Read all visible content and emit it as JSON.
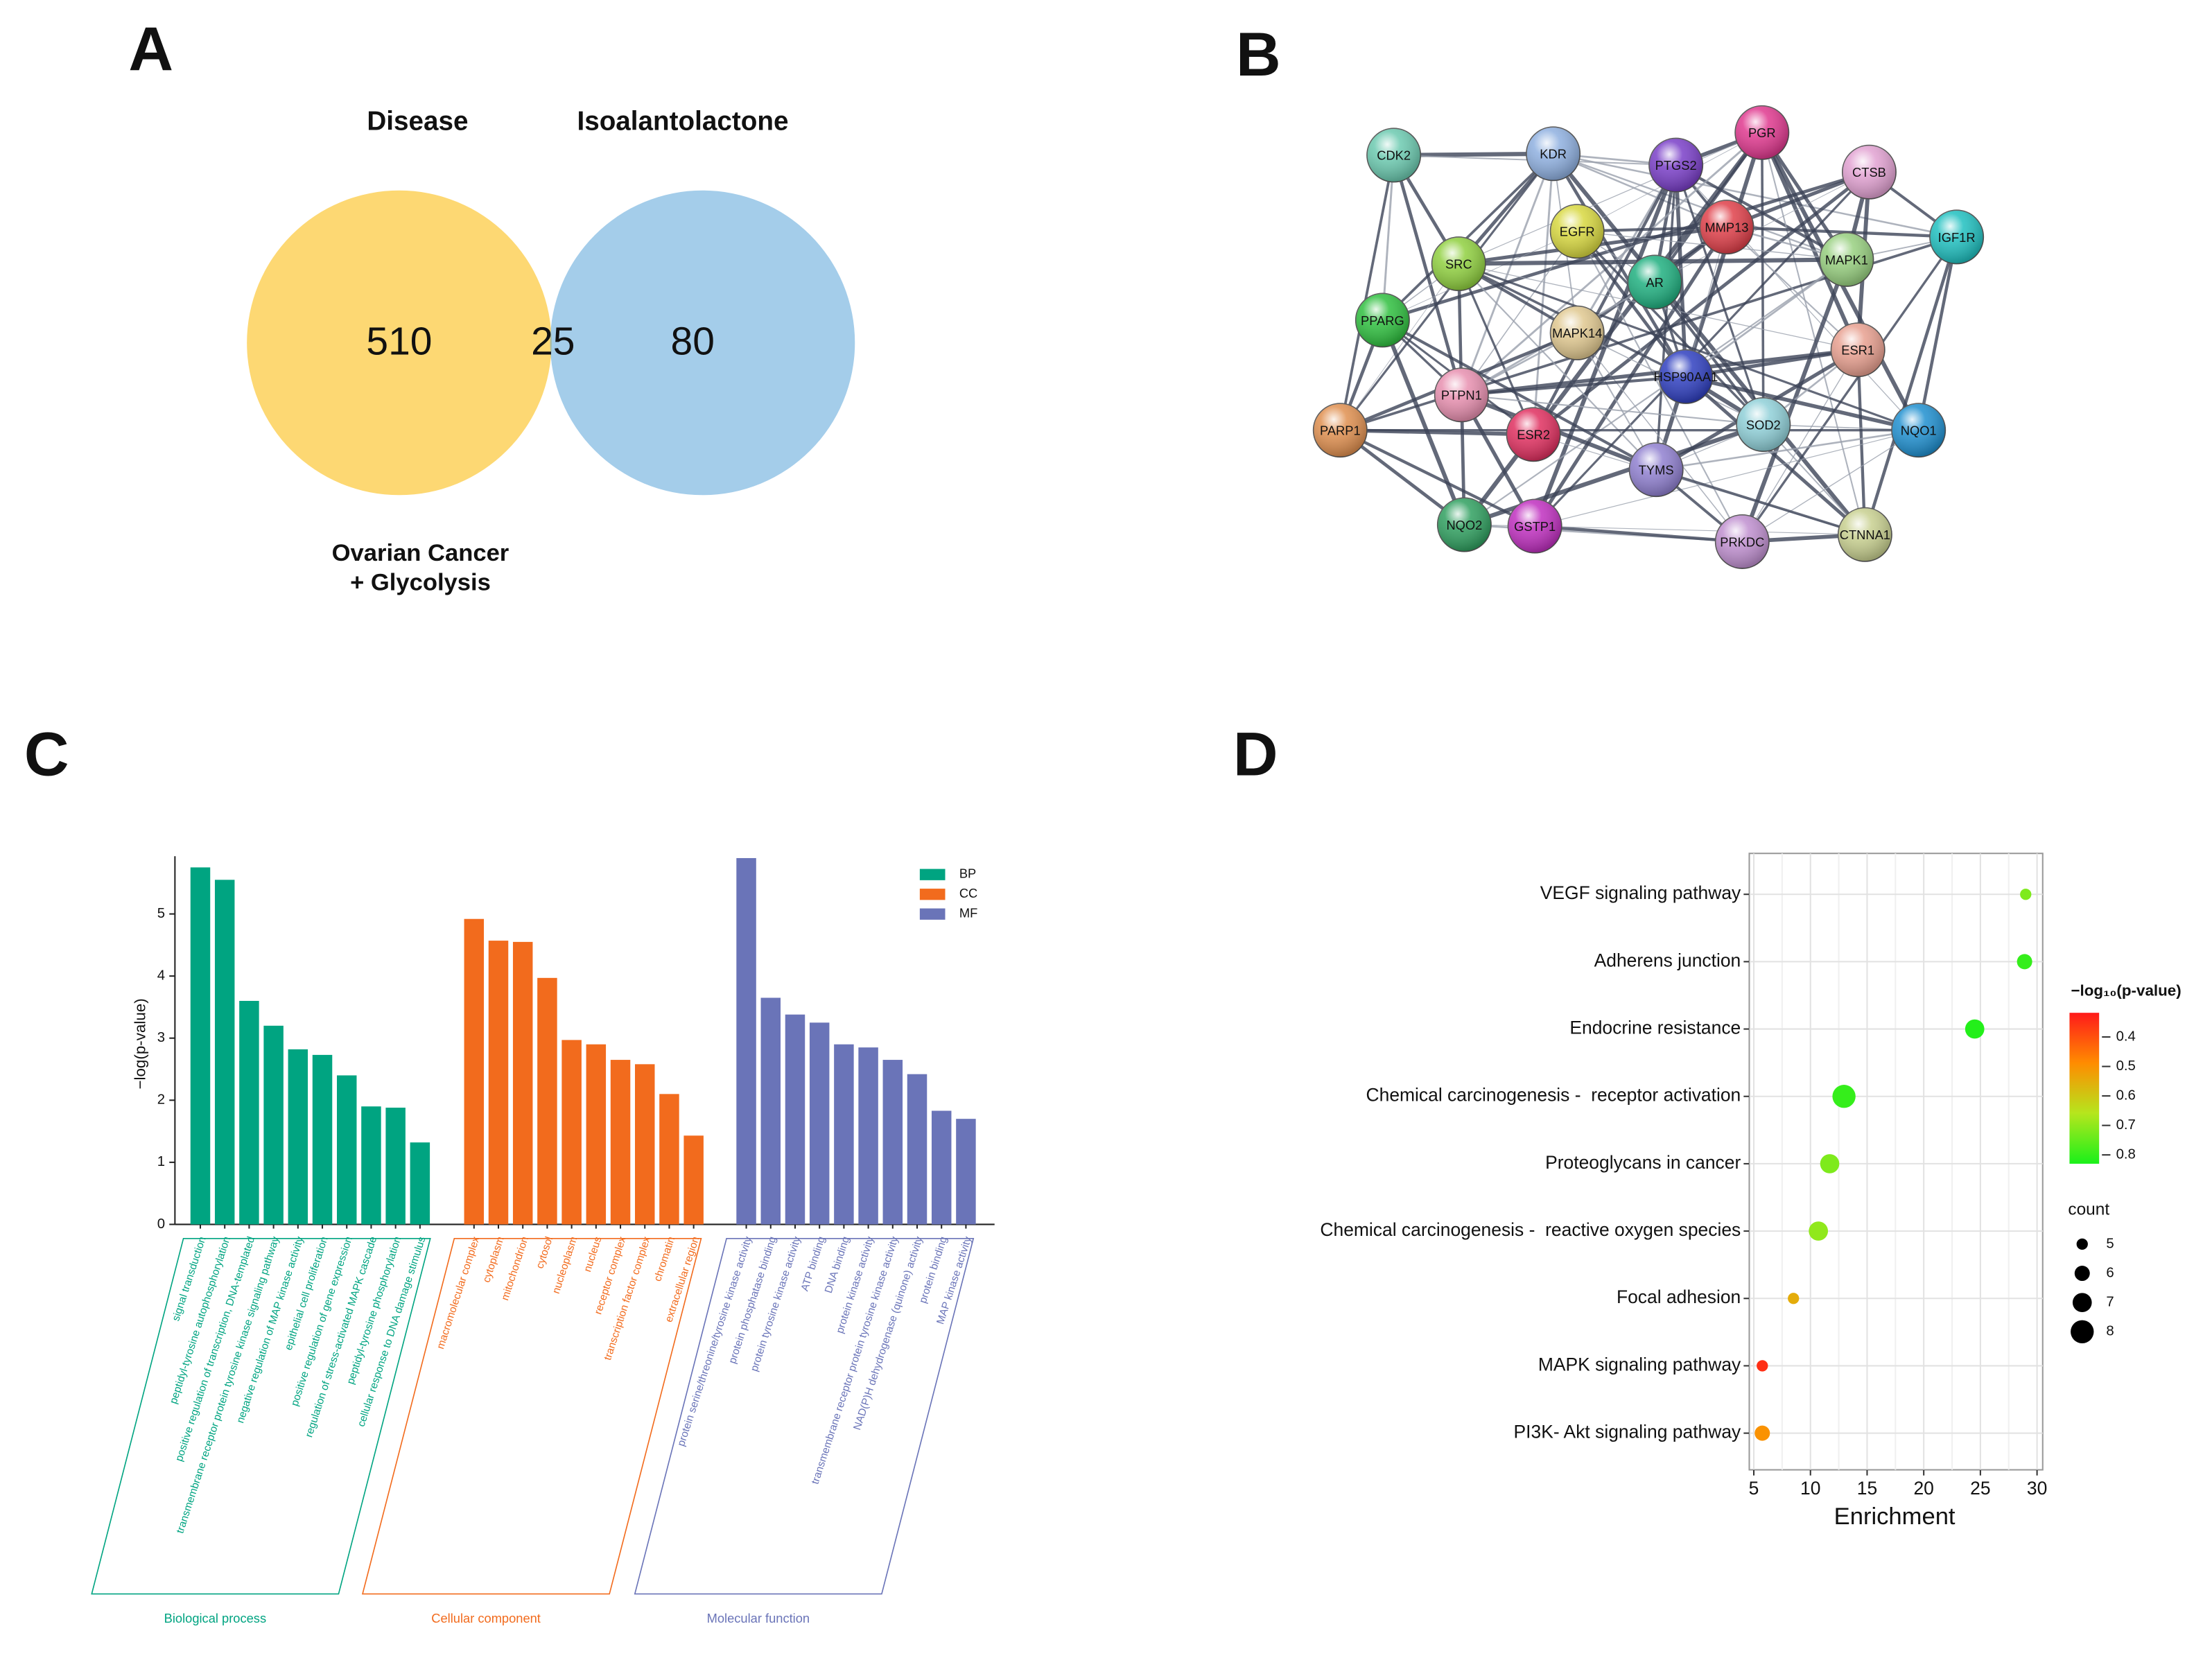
{
  "chart_data": [
    {
      "type": "venn",
      "label": "A",
      "sets": [
        {
          "name": "Disease",
          "color": "#fdd873"
        },
        {
          "name": "Isoalantolactone",
          "color": "#a4cdea"
        }
      ],
      "overlap_color": "#a9b99c",
      "note": [
        "Ovarian Cancer",
        "+ Glycolysis"
      ],
      "values": [
        510,
        25,
        80
      ]
    },
    {
      "type": "network",
      "label": "B",
      "nodes": [
        {
          "name": "CDK2",
          "color": "#6ccab0"
        },
        {
          "name": "KDR",
          "color": "#8fb0e0"
        },
        {
          "name": "PTGS2",
          "color": "#7a3fc8"
        },
        {
          "name": "PGR",
          "color": "#e0398f"
        },
        {
          "name": "CTSB",
          "color": "#e2a2d2"
        },
        {
          "name": "IGF1R",
          "color": "#20c0c0"
        },
        {
          "name": "MMP13",
          "color": "#e0404a"
        },
        {
          "name": "EGFR",
          "color": "#d8d840"
        },
        {
          "name": "SRC",
          "color": "#90d040"
        },
        {
          "name": "AR",
          "color": "#20b080"
        },
        {
          "name": "MAPK1",
          "color": "#98d080"
        },
        {
          "name": "PPARG",
          "color": "#30c040"
        },
        {
          "name": "MAPK14",
          "color": "#e0c890"
        },
        {
          "name": "ESR1",
          "color": "#e8a090"
        },
        {
          "name": "PTPN1",
          "color": "#e890b0"
        },
        {
          "name": "HSP90AA1",
          "color": "#3040c0"
        },
        {
          "name": "SOD2",
          "color": "#90d0d8"
        },
        {
          "name": "NQO1",
          "color": "#2090d0"
        },
        {
          "name": "PARP1",
          "color": "#e09050"
        },
        {
          "name": "ESR2",
          "color": "#e03060"
        },
        {
          "name": "TYMS",
          "color": "#9080d0"
        },
        {
          "name": "NQO2",
          "color": "#30a060"
        },
        {
          "name": "GSTP1",
          "color": "#c030c0"
        },
        {
          "name": "PRKDC",
          "color": "#c090d0"
        },
        {
          "name": "CTNNA1",
          "color": "#c8d090"
        }
      ]
    },
    {
      "type": "bar",
      "label": "C",
      "ylabel": "−log(p-value)",
      "ylim": [
        0,
        5.93
      ],
      "yticks": [
        0,
        1,
        2,
        3,
        4,
        5
      ],
      "series": [
        {
          "name": "BP",
          "group_label": "Biological process",
          "color": "#00a481",
          "categories": [
            "signal transduction",
            "peptidyl-tyrosine autophosphorylation",
            "positive regulation of transcription, DNA-templated",
            "transmembrane receptor protein tyrosine kinase signaling pathway",
            "negative regulation of MAP kinase activity",
            "epithelial cell proliferation",
            "positive regulation of gene expression",
            "regulation of stress-activated MAPK cascade",
            "peptidyl-tyrosine phosphorylation",
            "cellular response to DNA damage stimulus"
          ],
          "values": [
            5.75,
            5.55,
            3.6,
            3.2,
            2.82,
            2.73,
            2.4,
            1.9,
            1.88,
            1.32
          ]
        },
        {
          "name": "CC",
          "group_label": "Cellular component",
          "color": "#f26b1d",
          "categories": [
            "macromolecular complex",
            "cytoplasm",
            "mitochondrion",
            "cytosol",
            "nucleoplasm",
            "nucleus",
            "receptor complex",
            "transcription factor complex",
            "chromatin",
            "extracellular region"
          ],
          "values": [
            4.92,
            4.57,
            4.55,
            3.97,
            2.97,
            2.9,
            2.65,
            2.58,
            2.1,
            1.43
          ]
        },
        {
          "name": "MF",
          "group_label": "Molecular function",
          "color": "#6a74b8",
          "categories": [
            "protein serine/threonine/tyrosine kinase activity",
            "protein phosphatase binding",
            "protein tyrosine kinase activity",
            "ATP binding",
            "DNA binding",
            "protein kinase activity",
            "transmembrane receptor protein tyrosine kinase activity",
            "NAD(P)H dehydrogenase (quinone) activity",
            "protein binding",
            "MAP kinase activity"
          ],
          "values": [
            5.9,
            3.65,
            3.38,
            3.25,
            2.9,
            2.85,
            2.65,
            2.42,
            1.83,
            1.7
          ]
        }
      ]
    },
    {
      "type": "bubble",
      "label": "D",
      "xlabel": "Enrichment",
      "xlim": [
        4.6,
        30.5
      ],
      "xticks": [
        5,
        10,
        15,
        20,
        25,
        30
      ],
      "grid": true,
      "categories": [
        "VEGF signaling pathway",
        "Adherens junction",
        "Endocrine resistance",
        "Chemical carcinogenesis -  receptor activation",
        "Proteoglycans in cancer",
        "Chemical carcinogenesis -  reactive oxygen species",
        "Focal adhesion",
        "MAPK signaling pathway",
        "PI3K- Akt signaling pathway"
      ],
      "values": [
        29.0,
        28.9,
        24.5,
        12.96,
        11.7,
        10.7,
        8.5,
        5.75,
        5.75
      ],
      "counts": [
        5,
        6,
        7,
        8,
        7,
        7,
        5,
        5,
        6
      ],
      "color_values": [
        0.72,
        0.8,
        0.82,
        0.8,
        0.72,
        0.7,
        0.55,
        0.35,
        0.5
      ],
      "color_title": "−log₁₀(p-value)",
      "clim": [
        0.318,
        0.83
      ],
      "cticks": [
        0.4,
        0.5,
        0.6,
        0.7,
        0.8
      ],
      "colorscale": [
        "#ff1a1a",
        "#ff8c00",
        "#b5e61d",
        "#1af01a"
      ],
      "size_title": "count",
      "size_ticks": [
        5,
        6,
        7,
        8
      ]
    }
  ]
}
